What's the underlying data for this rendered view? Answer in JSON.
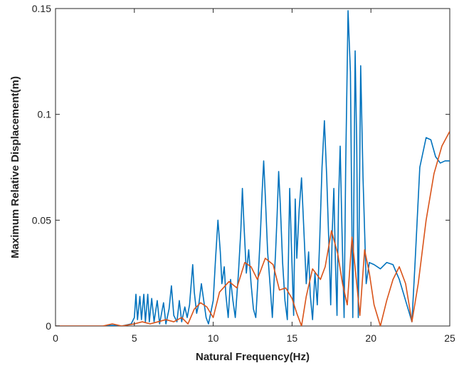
{
  "chart_data": {
    "type": "line",
    "title": "",
    "xlabel": "Natural Frequency(Hz)",
    "ylabel": "Maximum Relative Displacement(m)",
    "xlim": [
      0,
      25
    ],
    "ylim": [
      0,
      0.15
    ],
    "xticks": [
      "0",
      "5",
      "10",
      "15",
      "20",
      "25"
    ],
    "yticks": [
      "0",
      "0.05",
      "0.1",
      "0.15"
    ],
    "grid": false,
    "legend": "none",
    "series": [
      {
        "color": "#0072BD",
        "points": [
          [
            0,
            0
          ],
          [
            3,
            0
          ],
          [
            3.6,
            0.0003
          ],
          [
            4.2,
            0
          ],
          [
            4.8,
            0.001
          ],
          [
            5,
            0.004
          ],
          [
            5.1,
            0.015
          ],
          [
            5.2,
            0.003
          ],
          [
            5.35,
            0.014
          ],
          [
            5.45,
            0.003
          ],
          [
            5.6,
            0.015
          ],
          [
            5.7,
            0.002
          ],
          [
            5.85,
            0.015
          ],
          [
            5.95,
            0.002
          ],
          [
            6.1,
            0.013
          ],
          [
            6.25,
            0.002
          ],
          [
            6.45,
            0.012
          ],
          [
            6.6,
            0.001
          ],
          [
            6.85,
            0.011
          ],
          [
            7,
            0.001
          ],
          [
            7.2,
            0.008
          ],
          [
            7.35,
            0.019
          ],
          [
            7.5,
            0.005
          ],
          [
            7.7,
            0.002
          ],
          [
            7.85,
            0.012
          ],
          [
            8,
            0.002
          ],
          [
            8.2,
            0.009
          ],
          [
            8.35,
            0.004
          ],
          [
            8.5,
            0.01
          ],
          [
            8.7,
            0.029
          ],
          [
            8.8,
            0.016
          ],
          [
            8.95,
            0.006
          ],
          [
            9.1,
            0.011
          ],
          [
            9.25,
            0.02
          ],
          [
            9.4,
            0.012
          ],
          [
            9.55,
            0.004
          ],
          [
            9.7,
            0.001
          ],
          [
            10,
            0.012
          ],
          [
            10.15,
            0.032
          ],
          [
            10.3,
            0.05
          ],
          [
            10.45,
            0.035
          ],
          [
            10.55,
            0.02
          ],
          [
            10.7,
            0.028
          ],
          [
            10.8,
            0.015
          ],
          [
            10.95,
            0.004
          ],
          [
            11.1,
            0.022
          ],
          [
            11.25,
            0.012
          ],
          [
            11.4,
            0.004
          ],
          [
            11.6,
            0.025
          ],
          [
            11.75,
            0.045
          ],
          [
            11.85,
            0.065
          ],
          [
            11.95,
            0.048
          ],
          [
            12.1,
            0.025
          ],
          [
            12.25,
            0.036
          ],
          [
            12.4,
            0.02
          ],
          [
            12.55,
            0.008
          ],
          [
            12.7,
            0.004
          ],
          [
            12.9,
            0.03
          ],
          [
            13,
            0.045
          ],
          [
            13.1,
            0.063
          ],
          [
            13.2,
            0.078
          ],
          [
            13.3,
            0.062
          ],
          [
            13.45,
            0.035
          ],
          [
            13.6,
            0.02
          ],
          [
            13.75,
            0.004
          ],
          [
            13.85,
            0.02
          ],
          [
            13.95,
            0.034
          ],
          [
            14.05,
            0.052
          ],
          [
            14.15,
            0.073
          ],
          [
            14.25,
            0.058
          ],
          [
            14.4,
            0.03
          ],
          [
            14.55,
            0.012
          ],
          [
            14.7,
            0.003
          ],
          [
            14.85,
            0.065
          ],
          [
            14.95,
            0.04
          ],
          [
            15.1,
            0.005
          ],
          [
            15.2,
            0.06
          ],
          [
            15.3,
            0.032
          ],
          [
            15.45,
            0.055
          ],
          [
            15.6,
            0.07
          ],
          [
            15.75,
            0.045
          ],
          [
            15.9,
            0.02
          ],
          [
            16.05,
            0.035
          ],
          [
            16.15,
            0.015
          ],
          [
            16.3,
            0.003
          ],
          [
            16.45,
            0.025
          ],
          [
            16.6,
            0.01
          ],
          [
            16.75,
            0.04
          ],
          [
            16.9,
            0.075
          ],
          [
            17.05,
            0.097
          ],
          [
            17.2,
            0.07
          ],
          [
            17.35,
            0.035
          ],
          [
            17.45,
            0.01
          ],
          [
            17.55,
            0.045
          ],
          [
            17.65,
            0.065
          ],
          [
            17.75,
            0.03
          ],
          [
            17.85,
            0.005
          ],
          [
            17.95,
            0.06
          ],
          [
            18.05,
            0.085
          ],
          [
            18.15,
            0.05
          ],
          [
            18.3,
            0.004
          ],
          [
            18.4,
            0.075
          ],
          [
            18.55,
            0.149
          ],
          [
            18.7,
            0.12
          ],
          [
            18.85,
            0.004
          ],
          [
            19,
            0.13
          ],
          [
            19.1,
            0.085
          ],
          [
            19.2,
            0.004
          ],
          [
            19.35,
            0.123
          ],
          [
            19.5,
            0.07
          ],
          [
            19.7,
            0.02
          ],
          [
            19.9,
            0.03
          ],
          [
            20.2,
            0.029
          ],
          [
            20.6,
            0.027
          ],
          [
            21,
            0.03
          ],
          [
            21.4,
            0.029
          ],
          [
            21.8,
            0.022
          ],
          [
            22.2,
            0.012
          ],
          [
            22.6,
            0.002
          ],
          [
            22.8,
            0.03
          ],
          [
            23.1,
            0.075
          ],
          [
            23.5,
            0.089
          ],
          [
            23.8,
            0.088
          ],
          [
            24.1,
            0.08
          ],
          [
            24.4,
            0.077
          ],
          [
            24.7,
            0.078
          ],
          [
            25,
            0.078
          ]
        ]
      },
      {
        "color": "#D95319",
        "points": [
          [
            0,
            0
          ],
          [
            3,
            0
          ],
          [
            3.6,
            0.001
          ],
          [
            4.2,
            0
          ],
          [
            5,
            0.001
          ],
          [
            5.5,
            0.002
          ],
          [
            6,
            0.001
          ],
          [
            6.5,
            0.002
          ],
          [
            7,
            0.003
          ],
          [
            7.5,
            0.002
          ],
          [
            8,
            0.004
          ],
          [
            8.4,
            0.001
          ],
          [
            8.8,
            0.008
          ],
          [
            9.2,
            0.011
          ],
          [
            9.6,
            0.009
          ],
          [
            10,
            0.004
          ],
          [
            10.4,
            0.016
          ],
          [
            11,
            0.021
          ],
          [
            11.5,
            0.018
          ],
          [
            12,
            0.03
          ],
          [
            12.4,
            0.028
          ],
          [
            12.8,
            0.022
          ],
          [
            13.3,
            0.032
          ],
          [
            13.8,
            0.029
          ],
          [
            14.2,
            0.017
          ],
          [
            14.6,
            0.018
          ],
          [
            15,
            0.013
          ],
          [
            15.3,
            0.006
          ],
          [
            15.6,
            0
          ],
          [
            15.9,
            0.014
          ],
          [
            16.3,
            0.027
          ],
          [
            16.8,
            0.022
          ],
          [
            17.1,
            0.028
          ],
          [
            17.5,
            0.045
          ],
          [
            17.9,
            0.034
          ],
          [
            18.2,
            0.02
          ],
          [
            18.5,
            0.01
          ],
          [
            18.8,
            0.042
          ],
          [
            19.1,
            0.02
          ],
          [
            19.3,
            0.005
          ],
          [
            19.6,
            0.036
          ],
          [
            19.9,
            0.025
          ],
          [
            20.2,
            0.01
          ],
          [
            20.6,
            0
          ],
          [
            21,
            0.012
          ],
          [
            21.4,
            0.022
          ],
          [
            21.8,
            0.028
          ],
          [
            22.2,
            0.02
          ],
          [
            22.6,
            0.002
          ],
          [
            23,
            0.02
          ],
          [
            23.5,
            0.05
          ],
          [
            24,
            0.072
          ],
          [
            24.5,
            0.085
          ],
          [
            25,
            0.092
          ]
        ]
      }
    ]
  }
}
